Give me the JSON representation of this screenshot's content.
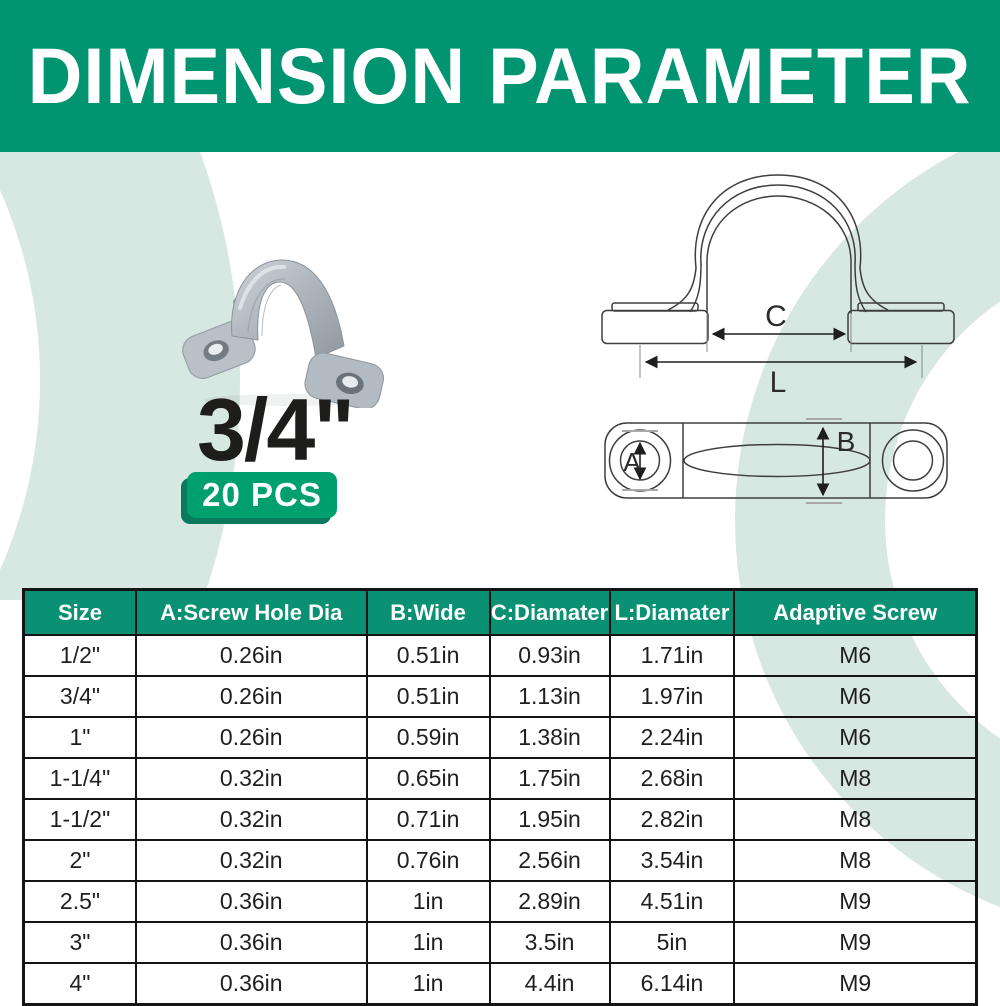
{
  "banner": {
    "title": "DIMENSION PARAMETER"
  },
  "product": {
    "size": "3/4\"",
    "quantity": "20 PCS"
  },
  "diagram": {
    "labels": {
      "c": "C",
      "l": "L",
      "a": "A",
      "b": "B"
    }
  },
  "table": {
    "headers": [
      "Size",
      "A:Screw Hole Dia",
      "B:Wide",
      "C:Diamater",
      "L:Diamater",
      "Adaptive Screw"
    ],
    "rows": [
      [
        "1/2\"",
        "0.26in",
        "0.51in",
        "0.93in",
        "1.71in",
        "M6"
      ],
      [
        "3/4\"",
        "0.26in",
        "0.51in",
        "1.13in",
        "1.97in",
        "M6"
      ],
      [
        "1\"",
        "0.26in",
        "0.59in",
        "1.38in",
        "2.24in",
        "M6"
      ],
      [
        "1-1/4\"",
        "0.32in",
        "0.65in",
        "1.75in",
        "2.68in",
        "M8"
      ],
      [
        "1-1/2\"",
        "0.32in",
        "0.71in",
        "1.95in",
        "2.82in",
        "M8"
      ],
      [
        "2\"",
        "0.32in",
        "0.76in",
        "2.56in",
        "3.54in",
        "M8"
      ],
      [
        "2.5\"",
        "0.36in",
        "1in",
        "2.89in",
        "4.51in",
        "M9"
      ],
      [
        "3\"",
        "0.36in",
        "1in",
        "3.5in",
        "5in",
        "M9"
      ],
      [
        "4\"",
        "0.36in",
        "1in",
        "4.4in",
        "6.14in",
        "M9"
      ]
    ]
  },
  "colors": {
    "banner_green": "#009471",
    "table_header_green": "#0a9173",
    "badge_green": "#00a06e",
    "badge_shadow_green": "#0b7a5c",
    "mint": "#d7e7e1",
    "text_dark": "#1d1d1b"
  }
}
